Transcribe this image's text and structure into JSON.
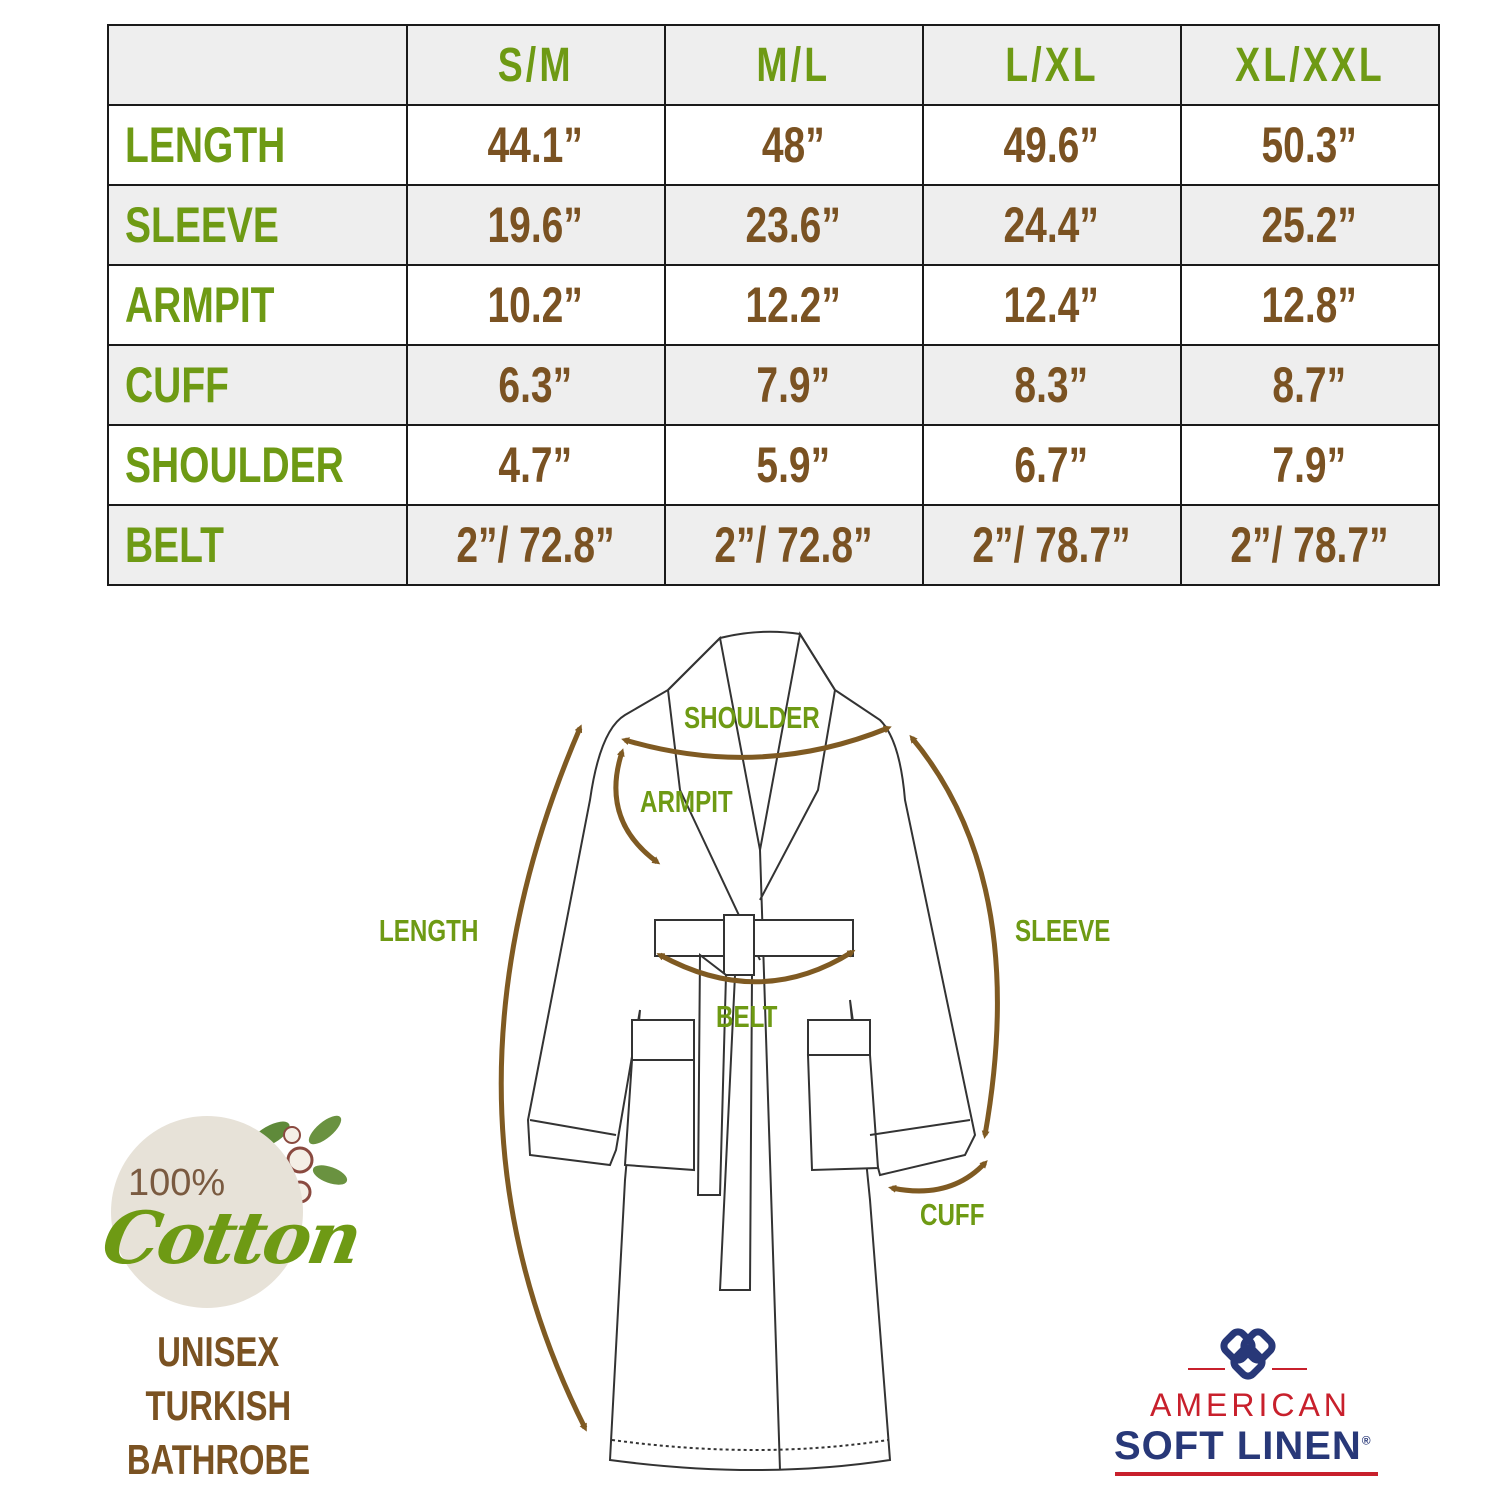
{
  "table": {
    "headers": [
      "",
      "S/M",
      "M/L",
      "L/XL",
      "XL/XXL"
    ],
    "rows": [
      {
        "label": "LENGTH",
        "values": [
          "44.1”",
          "48”",
          "49.6”",
          "50.3”"
        ]
      },
      {
        "label": "SLEEVE",
        "values": [
          "19.6”",
          "23.6”",
          "24.4”",
          "25.2”"
        ]
      },
      {
        "label": "ARMPIT",
        "values": [
          "10.2”",
          "12.2”",
          "12.4”",
          "12.8”"
        ]
      },
      {
        "label": "CUFF",
        "values": [
          "6.3”",
          "7.9”",
          "8.3”",
          "8.7”"
        ]
      },
      {
        "label": "SHOULDER",
        "values": [
          "4.7”",
          "5.9”",
          "6.7”",
          "7.9”"
        ]
      },
      {
        "label": "BELT",
        "values": [
          "2”/ 72.8”",
          "2”/ 72.8”",
          "2”/ 78.7”",
          "2”/ 78.7”"
        ]
      }
    ]
  },
  "diagram": {
    "labels": {
      "shoulder": "SHOULDER",
      "armpit": "ARMPIT",
      "length": "LENGTH",
      "sleeve": "SLEEVE",
      "belt": "BELT",
      "cuff": "CUFF"
    }
  },
  "badge": {
    "percent": "100%",
    "material": "Cotton",
    "lines": [
      "UNISEX",
      "TURKISH",
      "BATHROBE"
    ]
  },
  "brand": {
    "line1": "AMERICAN",
    "line2": "SOFT LINEN",
    "registered": "®"
  },
  "colors": {
    "label_green": "#6e9a14",
    "value_brown": "#7a5222",
    "arrow_brown": "#7f5a22",
    "row_gray": "#eeeeee",
    "brand_red": "#c8202c",
    "brand_blue": "#283878"
  }
}
